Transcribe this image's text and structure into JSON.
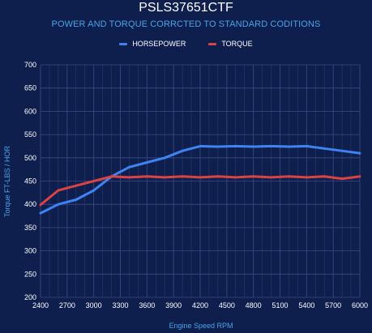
{
  "chart_data": {
    "type": "line",
    "title": "PSLS37651CTF",
    "subtitle": "POWER AND TORQUE CORRCTED TO STANDARD CODITIONS",
    "xlabel": "Engine Speed RPM",
    "ylabel": "Torque FT-LBS / HOR",
    "xlim": [
      2400,
      6000
    ],
    "ylim": [
      200,
      700
    ],
    "x_ticks": [
      "2400",
      "2700",
      "3000",
      "3300",
      "3600",
      "3900",
      "4200",
      "4500",
      "4800",
      "5100",
      "5400",
      "5700",
      "6000"
    ],
    "y_ticks": [
      "200",
      "250",
      "300",
      "350",
      "400",
      "450",
      "500",
      "550",
      "600",
      "650",
      "700"
    ],
    "grid": true,
    "legend_position": "top-center",
    "x": [
      2400,
      2600,
      2800,
      3000,
      3200,
      3400,
      3600,
      3800,
      4000,
      4200,
      4400,
      4600,
      4800,
      5000,
      5200,
      5400,
      5600,
      5800,
      6000
    ],
    "series": [
      {
        "name": "HORSEPOWER",
        "color": "#3f83f2",
        "values": [
          381,
          400,
          410,
          430,
          460,
          480,
          490,
          500,
          515,
          525,
          524,
          525,
          524,
          525,
          524,
          525,
          520,
          515,
          510
        ]
      },
      {
        "name": "TORQUE",
        "color": "#d94343",
        "values": [
          399,
          430,
          440,
          450,
          460,
          458,
          460,
          458,
          460,
          458,
          460,
          458,
          460,
          458,
          460,
          458,
          460,
          455,
          460
        ]
      }
    ]
  }
}
